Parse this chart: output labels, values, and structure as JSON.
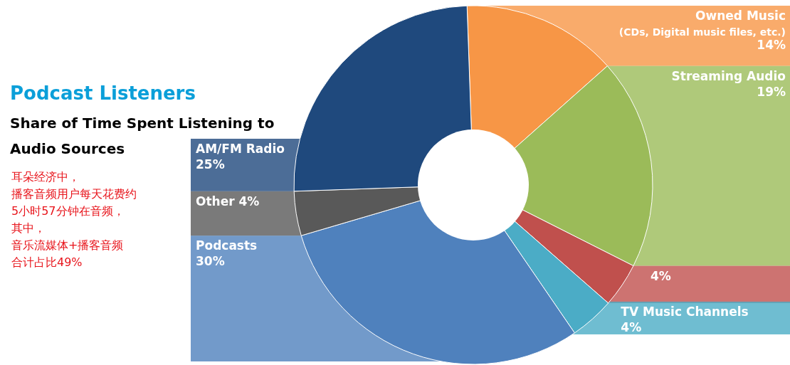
{
  "chart_data": {
    "type": "donut",
    "title": "Podcast Listeners",
    "subtitle": "Share of Time Spent Listening to Audio Sources",
    "categories": [
      "Owned Music (CDs, Digital music files, etc.)",
      "Streaming Audio",
      null,
      "TV Music Channels",
      "Podcasts",
      "Other",
      "AM/FM Radio"
    ],
    "values": [
      14,
      19,
      4,
      4,
      30,
      4,
      25
    ],
    "value_labels": [
      "14%",
      "19%",
      "4%",
      "4%",
      "30%",
      "4%",
      "25%"
    ],
    "colors": [
      "#f79646",
      "#9bbb59",
      "#c0504d",
      "#4bacc6",
      "#4f81bd",
      "#595959",
      "#1f497d"
    ],
    "annotations": [
      "耳朵经济中，",
      "播客音频用户每天花费约",
      "5小时57分钟在音频，",
      "其中，",
      "音乐流媒体+播客音频",
      "合计占比49%"
    ]
  }
}
